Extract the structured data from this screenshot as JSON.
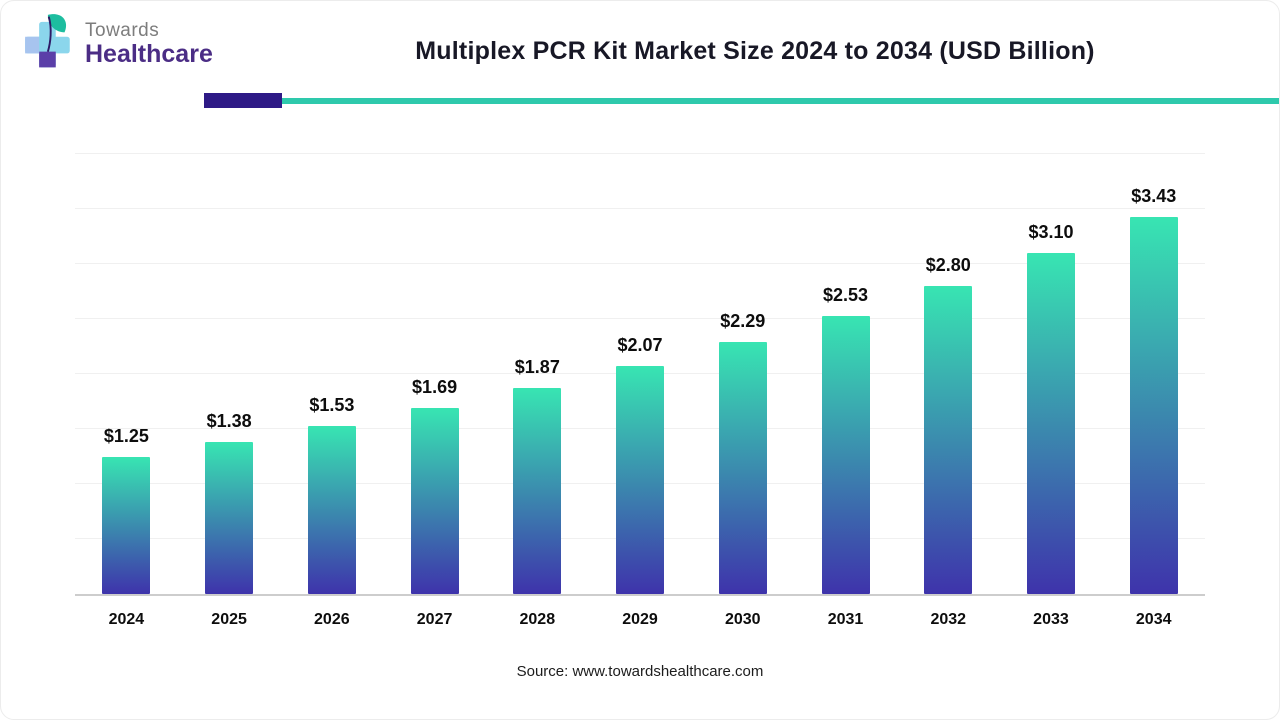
{
  "header": {
    "logo_line1": "Towards",
    "logo_line2": "Healthcare",
    "title": "Multiplex PCR Kit Market Size 2024 to 2034 (USD Billion)",
    "accent_purple": "#2e1a86",
    "accent_teal": "#2ec9ac"
  },
  "chart_data": {
    "type": "bar",
    "categories": [
      "2024",
      "2025",
      "2026",
      "2027",
      "2028",
      "2029",
      "2030",
      "2031",
      "2032",
      "2033",
      "2034"
    ],
    "values": [
      1.25,
      1.38,
      1.53,
      1.69,
      1.87,
      2.07,
      2.29,
      2.53,
      2.8,
      3.1,
      3.43
    ],
    "labels": [
      "$1.25",
      "$1.38",
      "$1.53",
      "$1.69",
      "$1.87",
      "$2.07",
      "$2.29",
      "$2.53",
      "$2.80",
      "$3.10",
      "$3.43"
    ],
    "title": "Multiplex PCR Kit Market Size 2024 to 2034 (USD Billion)",
    "xlabel": "",
    "ylabel": "",
    "ylim": [
      0,
      4
    ],
    "grid": true,
    "gridline_step": 0.5,
    "legend": "none",
    "bar_gradient_top": "#38e5b2",
    "bar_gradient_bottom": "#3e33ab"
  },
  "footer": {
    "source": "Source: www.towardshealthcare.com"
  }
}
